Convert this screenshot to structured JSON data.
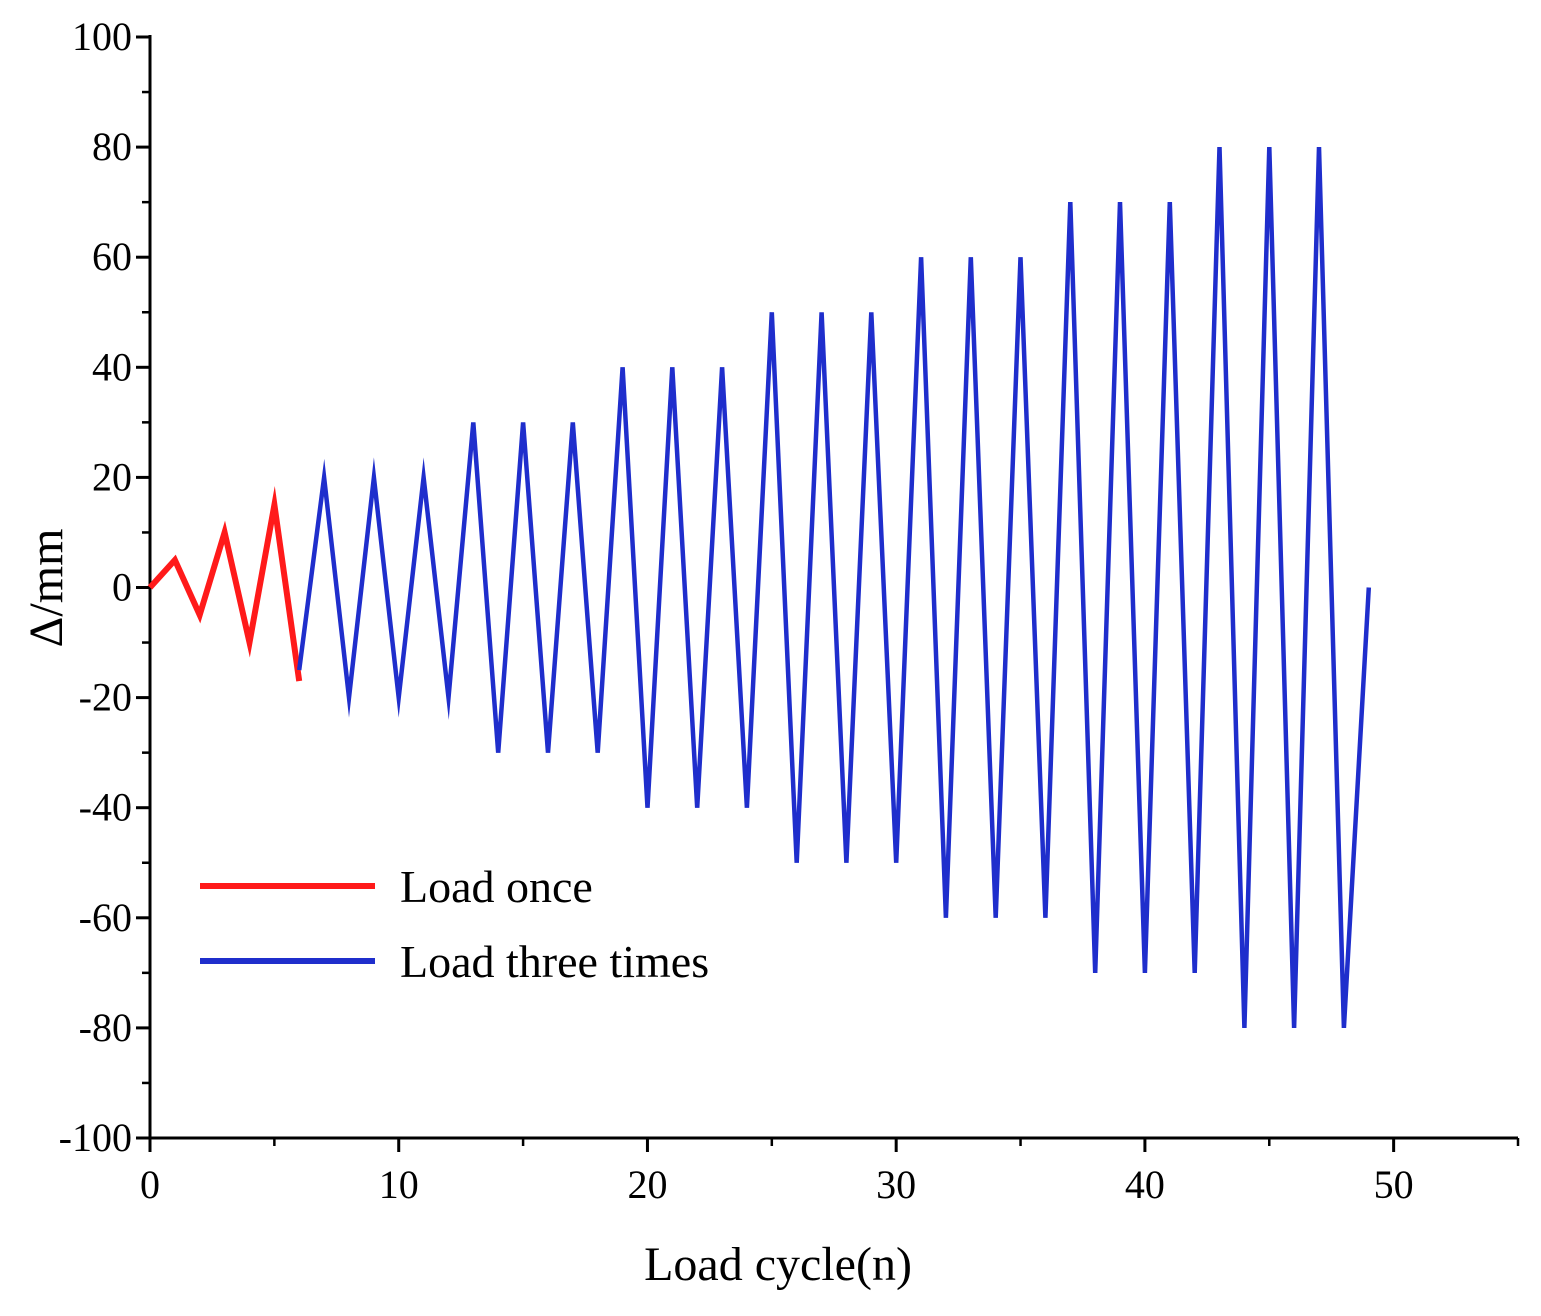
{
  "chart_data": {
    "type": "line",
    "xlabel": "Load cycle(n)",
    "ylabel": "Δ/mm",
    "xlim": [
      0,
      55
    ],
    "ylim": [
      -100,
      100
    ],
    "x_ticks": [
      0,
      10,
      20,
      30,
      40,
      50
    ],
    "y_ticks": [
      100,
      80,
      60,
      40,
      20,
      0,
      -20,
      -40,
      -60,
      -80,
      -100
    ],
    "x_tick_labels": [
      "0",
      "10",
      "20",
      "30",
      "40",
      "50"
    ],
    "y_tick_labels": [
      "100",
      "80",
      "60",
      "40",
      "20",
      "0",
      "-20",
      "-40",
      "-60",
      "-80",
      "-100"
    ],
    "grid": false,
    "legend_position": "bottom-left",
    "series": [
      {
        "name": "Load once",
        "color": "#ff1a1a",
        "x": [
          0,
          1,
          2,
          3,
          4,
          5,
          6
        ],
        "y": [
          0,
          5,
          -5,
          10,
          -10,
          15,
          -17
        ]
      },
      {
        "name": "Load three times",
        "color": "#1f2ecc",
        "x": [
          6,
          7,
          8,
          9,
          10,
          11,
          12,
          13,
          14,
          15,
          16,
          17,
          18,
          19,
          20,
          21,
          22,
          23,
          24,
          25,
          26,
          27,
          28,
          29,
          30,
          31,
          32,
          33,
          34,
          35,
          36,
          37,
          38,
          39,
          40,
          41,
          42,
          43,
          44,
          45,
          46,
          47,
          48,
          49
        ],
        "y": [
          -15,
          20,
          -20,
          20,
          -20,
          20,
          -20,
          30,
          -30,
          30,
          -30,
          30,
          -30,
          40,
          -40,
          40,
          -40,
          40,
          -40,
          50,
          -50,
          50,
          -50,
          50,
          -50,
          60,
          -60,
          60,
          -60,
          60,
          -60,
          70,
          -70,
          70,
          -70,
          70,
          -70,
          80,
          -80,
          80,
          -80,
          80,
          -80,
          0
        ]
      }
    ]
  }
}
